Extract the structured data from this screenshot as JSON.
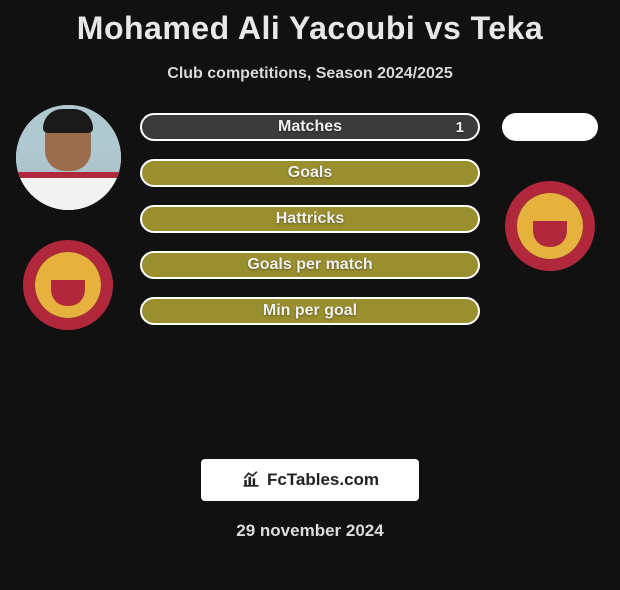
{
  "title": "Mohamed Ali Yacoubi vs Teka",
  "subtitle": "Club competitions, Season 2024/2025",
  "date": "29 november 2024",
  "logo_text": "FcTables.com",
  "colors": {
    "bg": "#111111",
    "bar_olive": "#9a8f2f",
    "bar_dark": "#3b3b3b",
    "bar_border": "#ffffff",
    "crest_ring": "#b1283c",
    "crest_inner": "#e5b23d",
    "shield_top": "#e5b23d",
    "shield_bot": "#b1283c",
    "avatar_shirt_stripe": "#b1283c"
  },
  "left_player": {
    "name": "Mohamed Ali Yacoubi",
    "has_photo": true,
    "has_crest": true
  },
  "right_player": {
    "name": "Teka",
    "has_photo": false,
    "has_crest": true
  },
  "stats": [
    {
      "label": "Matches",
      "left_pct": 0,
      "right_pct": 100,
      "right_value": "1"
    },
    {
      "label": "Goals",
      "left_pct": 0,
      "right_pct": 0
    },
    {
      "label": "Hattricks",
      "left_pct": 0,
      "right_pct": 0
    },
    {
      "label": "Goals per match",
      "left_pct": 0,
      "right_pct": 0
    },
    {
      "label": "Min per goal",
      "left_pct": 0,
      "right_pct": 0
    }
  ]
}
